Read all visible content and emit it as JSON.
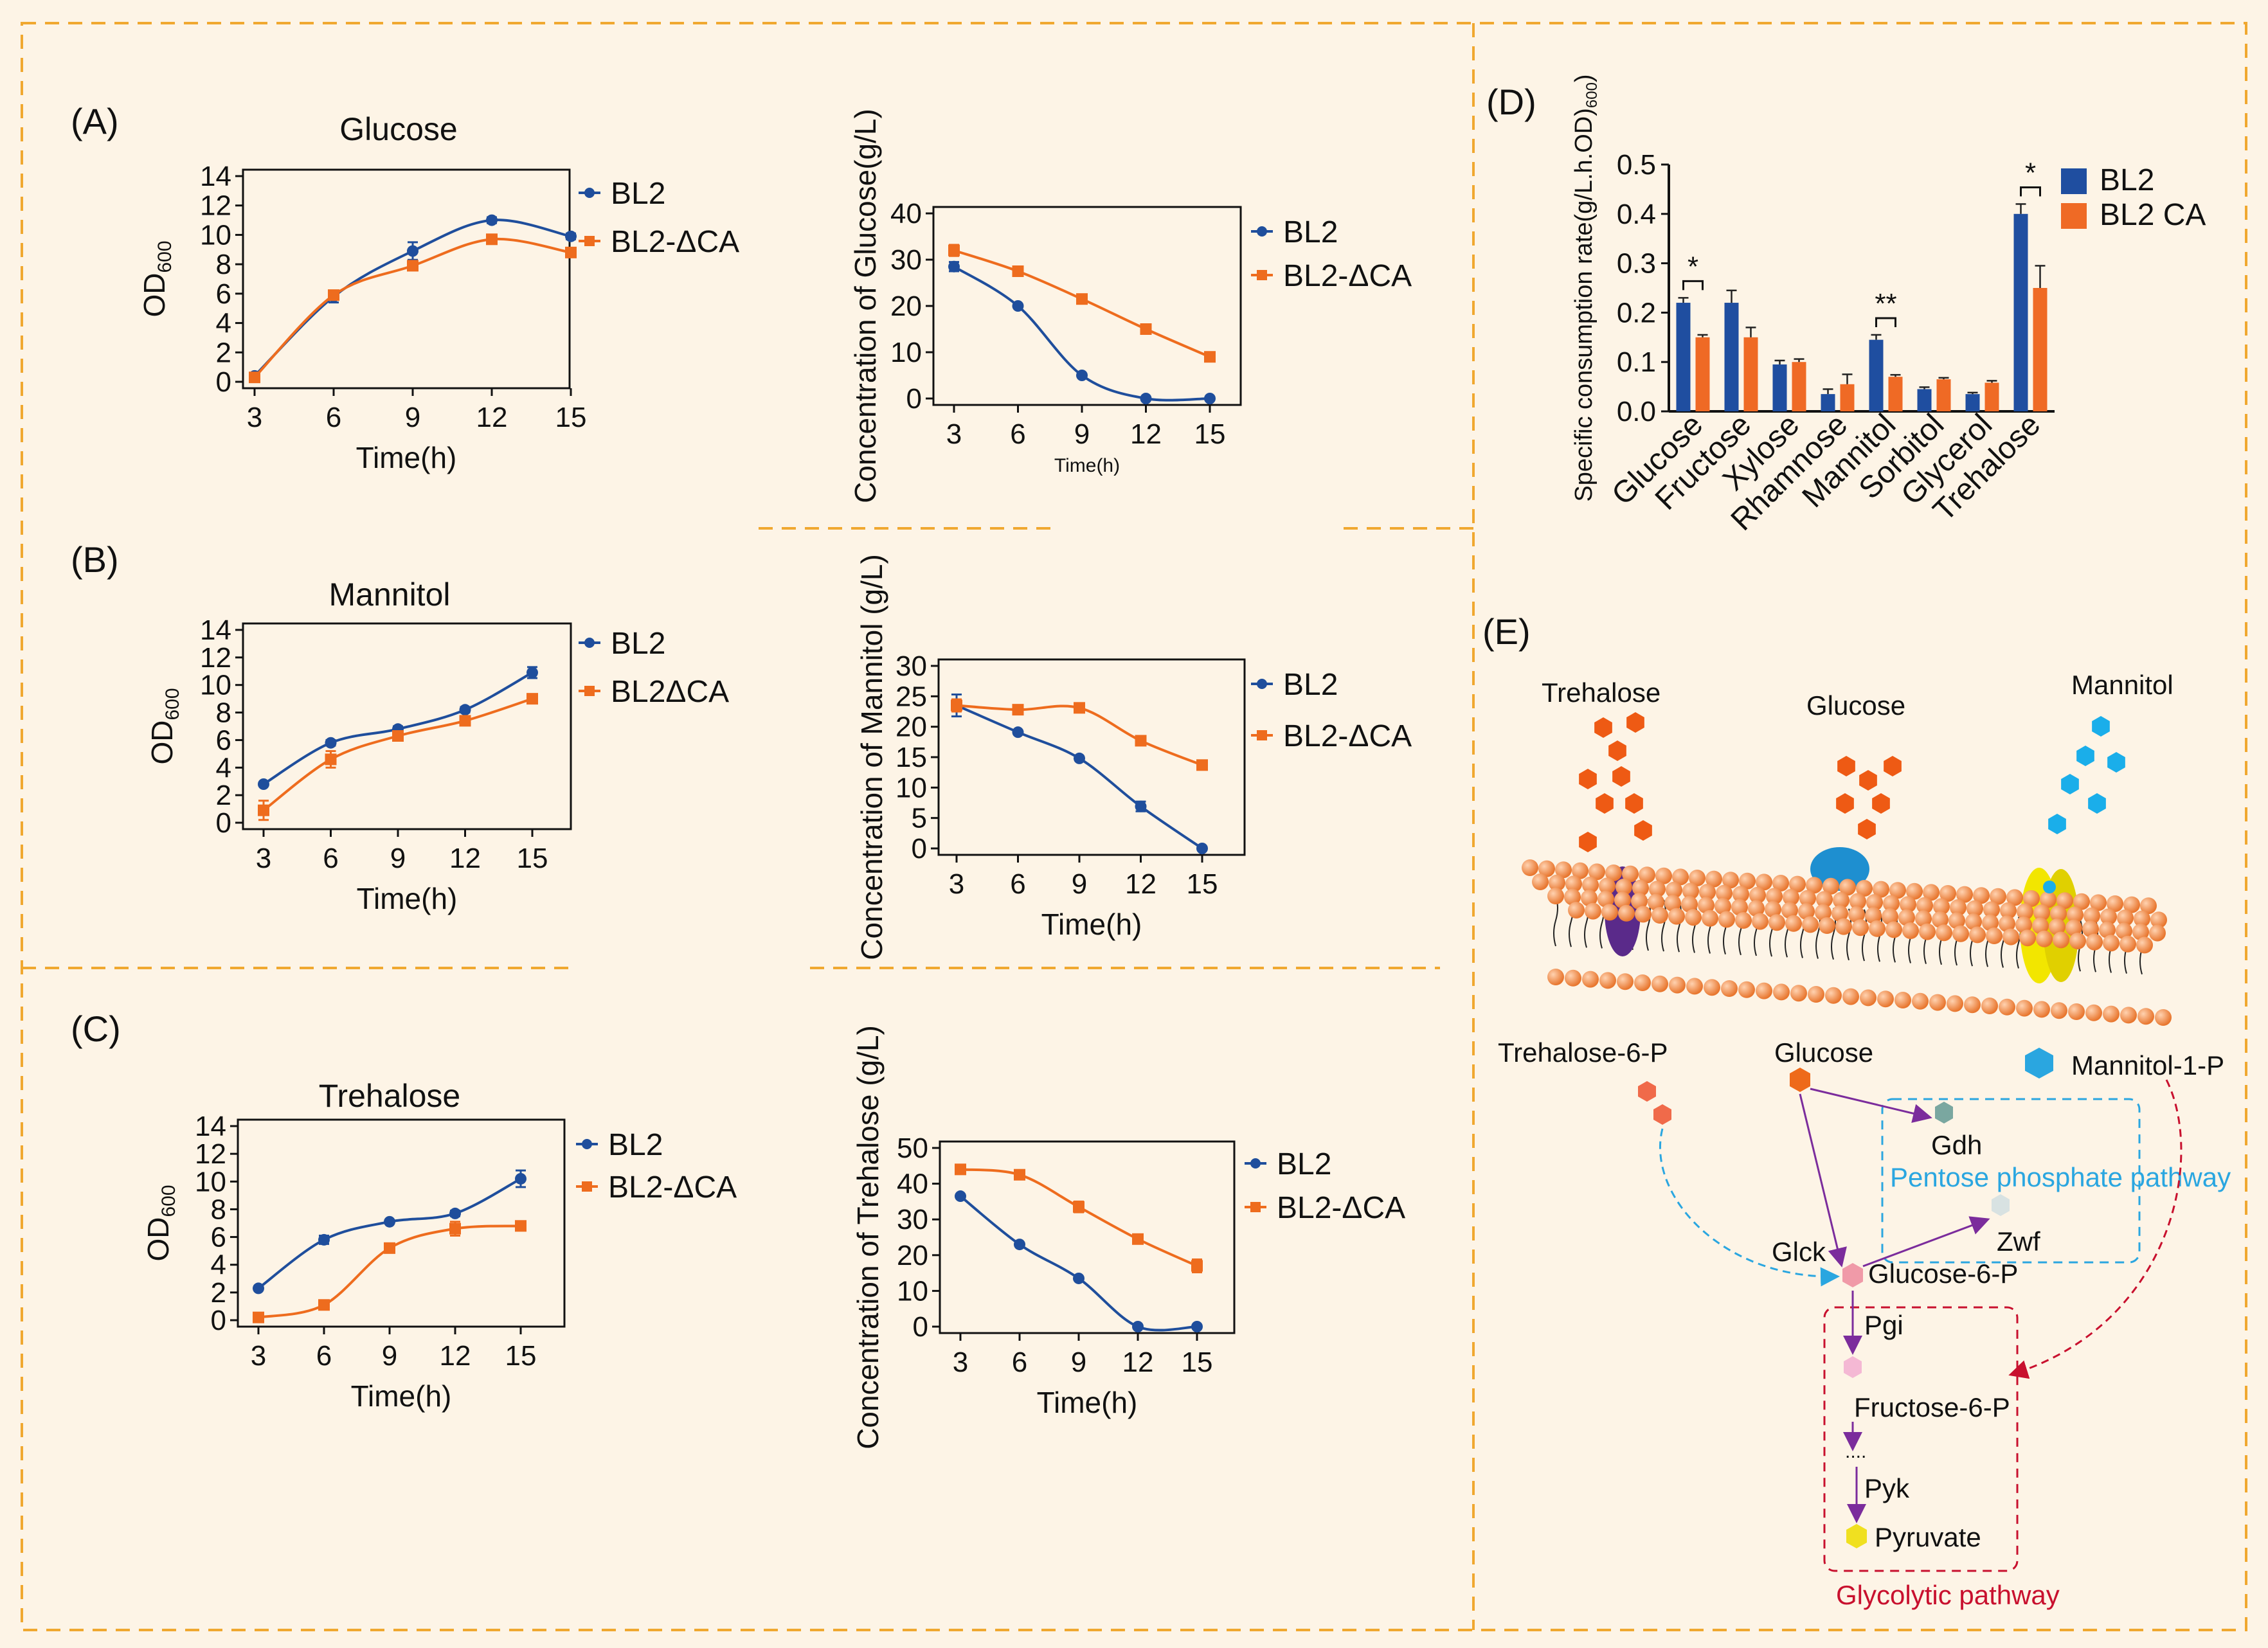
{
  "colors": {
    "bl2": "#1f4e9c",
    "dca": "#ee6c1e",
    "bar_bl2": "#1f4ea0",
    "bar_dca": "#ef6a25",
    "frame": "#f0a830",
    "bg": "#fdf4e6",
    "cyan": "#2aa6e0",
    "crimson": "#c8102e",
    "purple": "#7b2c9c"
  },
  "panels": {
    "A": {
      "label": "(A)",
      "title": "Glucose"
    },
    "B": {
      "label": "(B)",
      "title": "Mannitol"
    },
    "C": {
      "label": "(C)",
      "title": "Trehalose"
    },
    "D": {
      "label": "(D)"
    },
    "E": {
      "label": "(E)"
    }
  },
  "chart_data": [
    {
      "id": "A1",
      "type": "line",
      "title": "Glucose",
      "xlabel": "Time(h)",
      "ylabel": "OD600",
      "x": [
        3,
        6,
        9,
        12,
        15
      ],
      "ylim": [
        0,
        14
      ],
      "yticks": [
        0,
        2,
        4,
        6,
        8,
        10,
        12,
        14
      ],
      "series": [
        {
          "name": "BL2",
          "values": [
            0.4,
            5.8,
            8.9,
            11,
            9.9
          ],
          "err": [
            0.2,
            0.4,
            0.6,
            0.2,
            0.2
          ]
        },
        {
          "name": "BL2-ΔCA",
          "values": [
            0.3,
            5.9,
            7.9,
            9.7,
            8.8
          ],
          "err": [
            0.2,
            0.3,
            0.3,
            0.2,
            0.3
          ]
        }
      ]
    },
    {
      "id": "A2",
      "type": "line",
      "xlabel": "Time(h)",
      "ylabel": "Concentration of Glucose(g/L)",
      "x": [
        3,
        6,
        9,
        12,
        15
      ],
      "ylim": [
        0,
        40
      ],
      "yticks": [
        0,
        10,
        20,
        30,
        40
      ],
      "series": [
        {
          "name": "BL2",
          "values": [
            28.5,
            20,
            5,
            0,
            0
          ],
          "err": [
            1,
            0.3,
            0.3,
            0.2,
            0.2
          ]
        },
        {
          "name": "BL2-ΔCA",
          "values": [
            32,
            27.5,
            21.5,
            15,
            9
          ],
          "err": [
            1.2,
            0.4,
            0.3,
            0.3,
            0.3
          ]
        }
      ]
    },
    {
      "id": "B1",
      "type": "line",
      "title": "Mannitol",
      "xlabel": "Time(h)",
      "ylabel": "OD600",
      "x": [
        3,
        6,
        9,
        12,
        15
      ],
      "ylim": [
        0,
        14
      ],
      "yticks": [
        0,
        2,
        4,
        6,
        8,
        10,
        12,
        14
      ],
      "series": [
        {
          "name": "BL2",
          "values": [
            2.8,
            5.8,
            6.8,
            8.2,
            10.9
          ],
          "err": [
            0.1,
            0.2,
            0.2,
            0.2,
            0.4
          ]
        },
        {
          "name": "BL2ΔCA",
          "values": [
            0.9,
            4.6,
            6.3,
            7.4,
            9.0
          ],
          "err": [
            0.7,
            0.6,
            0.2,
            0.2,
            0.2
          ]
        }
      ]
    },
    {
      "id": "B2",
      "type": "line",
      "xlabel": "Time(h)",
      "ylabel": "Concentration of Mannitol (g/L)",
      "x": [
        3,
        6,
        9,
        12,
        15
      ],
      "ylim": [
        0,
        30
      ],
      "yticks": [
        0,
        5,
        10,
        15,
        20,
        25,
        30
      ],
      "series": [
        {
          "name": "BL2",
          "values": [
            23.5,
            19.1,
            14.8,
            6.9,
            0
          ],
          "err": [
            1.8,
            0.3,
            0.3,
            0.8,
            0.2
          ]
        },
        {
          "name": "BL2-ΔCA",
          "values": [
            23.5,
            22.8,
            23.1,
            17.7,
            13.7
          ],
          "err": [
            1,
            0.4,
            0.3,
            0.3,
            0.3
          ]
        }
      ]
    },
    {
      "id": "C1",
      "type": "line",
      "title": "Trehalose",
      "xlabel": "Time(h)",
      "ylabel": "OD600",
      "x": [
        3,
        6,
        9,
        12,
        15
      ],
      "ylim": [
        0,
        14
      ],
      "yticks": [
        0,
        2,
        4,
        6,
        8,
        10,
        12,
        14
      ],
      "series": [
        {
          "name": "BL2",
          "values": [
            2.3,
            5.8,
            7.1,
            7.7,
            10.2
          ],
          "err": [
            0.1,
            0.3,
            0.1,
            0.2,
            0.6
          ]
        },
        {
          "name": "BL2-ΔCA",
          "values": [
            0.2,
            1.1,
            5.2,
            6.6,
            6.8
          ],
          "err": [
            0.1,
            0.1,
            0.2,
            0.5,
            0.2
          ]
        }
      ]
    },
    {
      "id": "C2",
      "type": "line",
      "xlabel": "Time(h)",
      "ylabel": "Concentration of Trehalose (g/L)",
      "x": [
        3,
        6,
        9,
        12,
        15
      ],
      "ylim": [
        0,
        50
      ],
      "yticks": [
        0,
        10,
        20,
        30,
        40,
        50
      ],
      "series": [
        {
          "name": "BL2",
          "values": [
            36.5,
            23,
            13.5,
            0,
            0
          ],
          "err": [
            0.5,
            0.4,
            0.4,
            0.3,
            0.3
          ]
        },
        {
          "name": "BL2-ΔCA",
          "values": [
            44,
            42.5,
            33.5,
            24.5,
            17
          ],
          "err": [
            0.6,
            0.6,
            1.5,
            0.4,
            1.8
          ]
        }
      ]
    },
    {
      "id": "D",
      "type": "bar",
      "ylabel": "Specific consumption rate(g/L.h.OD600)",
      "ylim": [
        0,
        0.5
      ],
      "yticks": [
        "0.0",
        "0.1",
        "0.2",
        "0.3",
        "0.4",
        "0.5"
      ],
      "categories": [
        "Glucose",
        "Fructose",
        "Xylose",
        "Rhamnose",
        "Mannitol",
        "Sorbitol",
        "Glycerol",
        "Trehalose"
      ],
      "series": [
        {
          "name": "BL2",
          "values": [
            0.22,
            0.22,
            0.095,
            0.035,
            0.145,
            0.045,
            0.035,
            0.4
          ],
          "err": [
            0.01,
            0.025,
            0.008,
            0.01,
            0.01,
            0.004,
            0.003,
            0.02
          ]
        },
        {
          "name": "BL2 CA",
          "values": [
            0.15,
            0.15,
            0.1,
            0.055,
            0.07,
            0.065,
            0.058,
            0.25
          ],
          "err": [
            0.005,
            0.02,
            0.006,
            0.02,
            0.004,
            0.003,
            0.004,
            0.045
          ]
        }
      ],
      "significance": [
        {
          "category": "Glucose",
          "mark": "*"
        },
        {
          "category": "Mannitol",
          "mark": "**"
        },
        {
          "category": "Trehalose",
          "mark": "*"
        }
      ]
    }
  ],
  "pathway": {
    "sugars": {
      "trehalose": "Trehalose",
      "glucose": "Glucose",
      "mannitol": "Mannitol"
    },
    "trehalose6p": "Trehalose-6-P",
    "glucose_in": "Glucose",
    "mannitol1p": "Mannitol-1-P",
    "gdh": "Gdh",
    "ppp": "Pentose phosphate pathway",
    "zwf": "Zwf",
    "glck": "Glck",
    "g6p": "Glucose-6-P",
    "pgi": "Pgi",
    "f6p": "Fructose-6-P",
    "dots": "....",
    "pyk": "Pyk",
    "pyruvate": "Pyruvate",
    "glycolytic": "Glycolytic pathway"
  }
}
